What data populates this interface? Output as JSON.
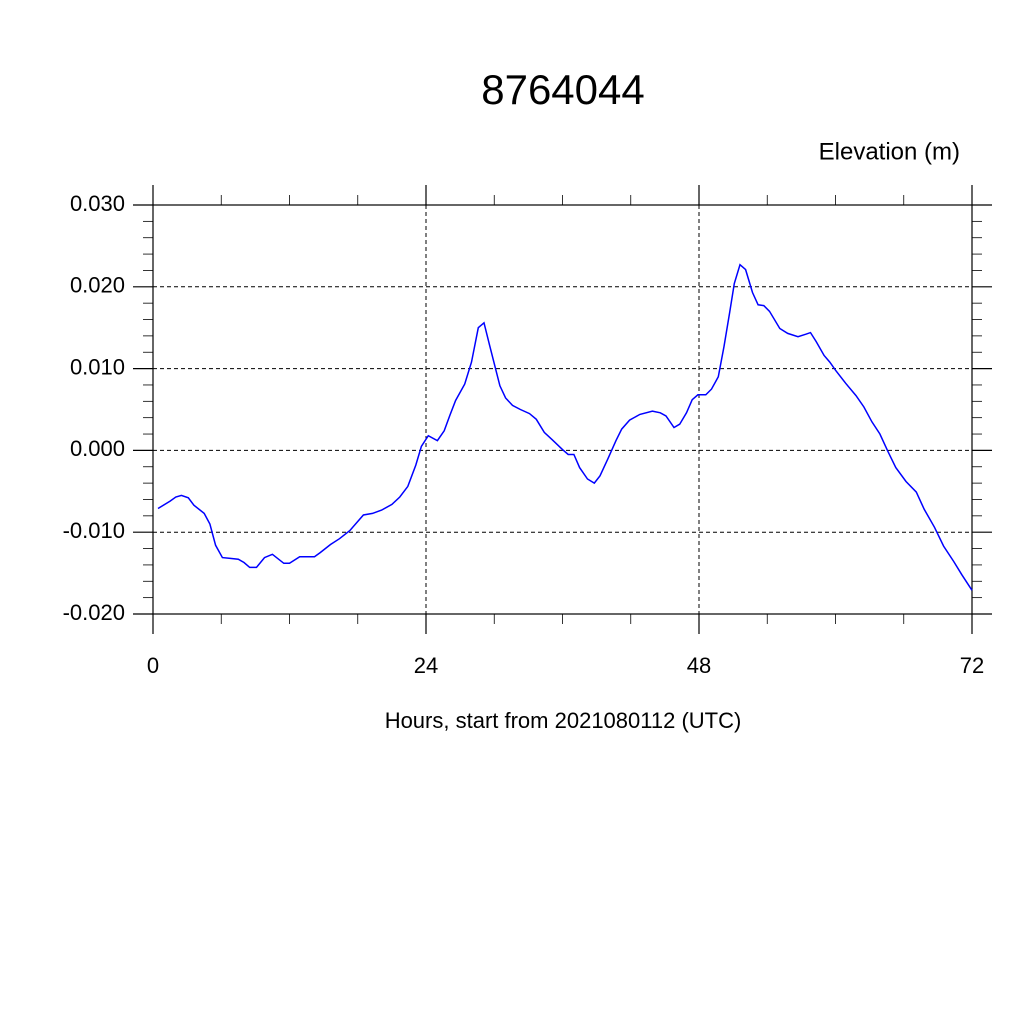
{
  "chart_data": {
    "type": "line",
    "title": "8764044",
    "y_label": "Elevation (m)",
    "x_label": "Hours, start from 2021080112 (UTC)",
    "xlim": [
      0,
      72
    ],
    "xticks": [
      0,
      24,
      48,
      72
    ],
    "xminorticks": [
      6,
      12,
      18,
      30,
      36,
      42,
      54,
      60,
      66
    ],
    "ylim": [
      -0.02,
      0.03
    ],
    "yticks": [
      {
        "value": -0.02,
        "label": "-0.020"
      },
      {
        "value": -0.01,
        "label": "-0.010"
      },
      {
        "value": 0,
        "label": "0.000"
      },
      {
        "value": 0.01,
        "label": "0.010"
      },
      {
        "value": 0.02,
        "label": "0.020"
      },
      {
        "value": 0.03,
        "label": "0.030"
      }
    ],
    "yminorticks": [
      -0.018,
      -0.016,
      -0.014,
      -0.012,
      -0.008,
      -0.006,
      -0.004,
      -0.002,
      0.002,
      0.004,
      0.006,
      0.008,
      0.012,
      0.014,
      0.016,
      0.018,
      0.022,
      0.024,
      0.026,
      0.028
    ],
    "grid": true,
    "x": [
      0.44,
      1.5,
      2.0,
      2.5,
      3.1,
      3.6,
      4.5,
      5.0,
      5.5,
      6.1,
      6.8,
      7.5,
      8.0,
      8.5,
      9.1,
      9.8,
      10.5,
      11.5,
      12.0,
      12.9,
      13.5,
      14.2,
      14.7,
      15.6,
      16.4,
      17.3,
      18.5,
      19.3,
      20.1,
      21.0,
      21.7,
      22.4,
      23.1,
      23.6,
      24.2,
      25.0,
      25.6,
      26.1,
      26.6,
      27.4,
      28.0,
      28.6,
      29.1,
      29.6,
      30.5,
      31.0,
      31.6,
      32.3,
      33.1,
      33.7,
      34.4,
      35.1,
      36.0,
      36.5,
      37.0,
      37.5,
      38.2,
      38.8,
      39.3,
      40.0,
      40.7,
      41.2,
      41.9,
      42.8,
      43.9,
      44.6,
      45.1,
      45.8,
      46.3,
      46.9,
      47.4,
      47.9,
      48.6,
      49.1,
      49.7,
      50.2,
      50.7,
      51.1,
      51.6,
      52.1,
      52.7,
      53.2,
      53.7,
      54.2,
      55.1,
      55.8,
      56.7,
      57.4,
      57.8,
      58.3,
      59.0,
      59.5,
      60.0,
      60.9,
      61.8,
      62.5,
      63.2,
      63.9,
      64.6,
      65.3,
      66.2,
      67.1,
      67.8,
      68.7,
      69.5,
      70.4,
      71.1,
      72.0
    ],
    "series": [
      {
        "color": "#0000ff",
        "values": [
          -0.0071,
          -0.0062,
          -0.0057,
          -0.0055,
          -0.0058,
          -0.0067,
          -0.0077,
          -0.009,
          -0.0116,
          -0.0131,
          -0.0132,
          -0.0133,
          -0.0137,
          -0.0143,
          -0.0143,
          -0.0131,
          -0.0127,
          -0.0138,
          -0.0138,
          -0.013,
          -0.013,
          -0.013,
          -0.0125,
          -0.0115,
          -0.0108,
          -0.0098,
          -0.0079,
          -0.0077,
          -0.0073,
          -0.0066,
          -0.0057,
          -0.0044,
          -0.0018,
          0.0005,
          0.0018,
          0.0012,
          0.0024,
          0.0043,
          0.0061,
          0.0081,
          0.0108,
          0.015,
          0.0156,
          0.0128,
          0.0079,
          0.0064,
          0.0055,
          0.005,
          0.0045,
          0.0038,
          0.0022,
          0.0013,
          0.0001,
          -0.0005,
          -0.0005,
          -0.0021,
          -0.0035,
          -0.004,
          -0.0031,
          -0.001,
          0.0012,
          0.0026,
          0.0037,
          0.0044,
          0.0048,
          0.0046,
          0.0042,
          0.0028,
          0.0032,
          0.0046,
          0.0062,
          0.0068,
          0.0068,
          0.0075,
          0.009,
          0.0127,
          0.0169,
          0.0204,
          0.0227,
          0.0221,
          0.0193,
          0.0178,
          0.0177,
          0.017,
          0.0149,
          0.0143,
          0.0139,
          0.0142,
          0.0144,
          0.0133,
          0.0116,
          0.0108,
          0.0098,
          0.0082,
          0.0067,
          0.0053,
          0.0035,
          0.002,
          -0.0001,
          -0.0021,
          -0.0038,
          -0.0051,
          -0.0072,
          -0.0094,
          -0.0117,
          -0.0136,
          -0.0152,
          -0.0171
        ]
      }
    ]
  }
}
